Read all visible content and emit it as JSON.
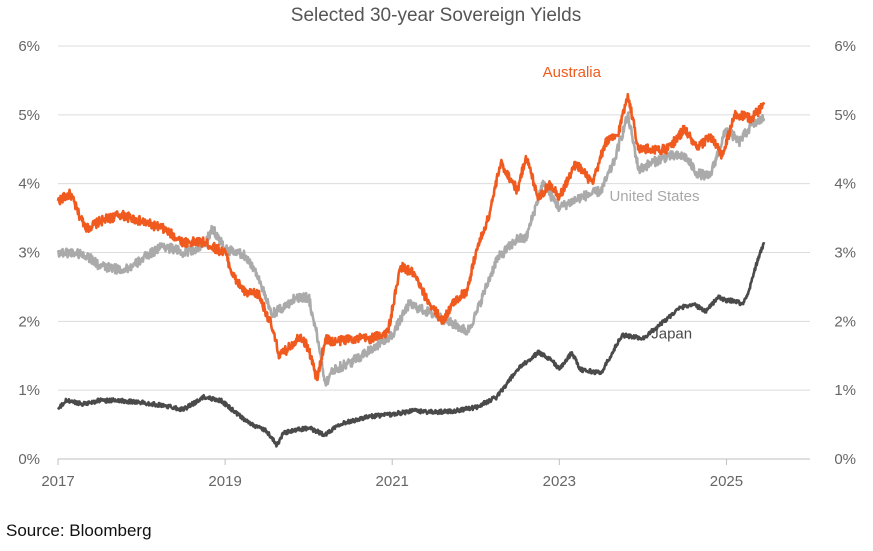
{
  "chart_data": {
    "type": "line",
    "title": "Selected 30-year Sovereign Yields",
    "xlabel": "",
    "ylabel": "",
    "xlim": [
      2017.0,
      2026.0
    ],
    "ylim": [
      0,
      6
    ],
    "y_ticks": [
      0,
      1,
      2,
      3,
      4,
      5,
      6
    ],
    "y_tick_labels": [
      "0%",
      "1%",
      "2%",
      "3%",
      "4%",
      "5%",
      "6%"
    ],
    "x_ticks": [
      2017,
      2019,
      2021,
      2023,
      2025
    ],
    "x_tick_labels": [
      "2017",
      "2019",
      "2021",
      "2023",
      "2025"
    ],
    "grid": true,
    "legend": "none (series labelled directly on chart)",
    "series": [
      {
        "name": "Australia",
        "color": "#f05a1e",
        "x": [
          2017.0,
          2017.15,
          2017.25,
          2017.35,
          2017.5,
          2017.75,
          2018.0,
          2018.25,
          2018.5,
          2018.75,
          2018.9,
          2019.0,
          2019.1,
          2019.25,
          2019.4,
          2019.55,
          2019.65,
          2019.75,
          2019.9,
          2020.0,
          2020.1,
          2020.2,
          2020.3,
          2020.5,
          2020.75,
          2020.95,
          2021.1,
          2021.25,
          2021.4,
          2021.6,
          2021.75,
          2021.9,
          2022.0,
          2022.15,
          2022.3,
          2022.5,
          2022.6,
          2022.75,
          2022.9,
          2023.0,
          2023.2,
          2023.4,
          2023.55,
          2023.7,
          2023.82,
          2023.95,
          2024.1,
          2024.3,
          2024.5,
          2024.65,
          2024.8,
          2024.95,
          2025.1,
          2025.3,
          2025.45
        ],
        "values": [
          3.75,
          3.85,
          3.55,
          3.35,
          3.45,
          3.55,
          3.45,
          3.35,
          3.15,
          3.15,
          3.05,
          3.0,
          2.65,
          2.4,
          2.4,
          1.95,
          1.5,
          1.6,
          1.8,
          1.6,
          1.15,
          1.75,
          1.7,
          1.75,
          1.75,
          1.85,
          2.8,
          2.7,
          2.35,
          2.0,
          2.3,
          2.45,
          3.0,
          3.5,
          4.3,
          3.9,
          4.4,
          3.8,
          4.0,
          3.8,
          4.3,
          4.0,
          4.6,
          4.7,
          5.3,
          4.5,
          4.5,
          4.5,
          4.8,
          4.5,
          4.7,
          4.4,
          5.0,
          4.95,
          5.15
        ]
      },
      {
        "name": "United States",
        "color": "#aaaaaa",
        "x": [
          2017.0,
          2017.2,
          2017.35,
          2017.5,
          2017.75,
          2017.9,
          2018.0,
          2018.25,
          2018.5,
          2018.75,
          2018.85,
          2019.0,
          2019.25,
          2019.4,
          2019.55,
          2019.7,
          2019.85,
          2020.0,
          2020.1,
          2020.2,
          2020.3,
          2020.5,
          2020.75,
          2021.0,
          2021.2,
          2021.5,
          2021.75,
          2021.9,
          2022.0,
          2022.25,
          2022.5,
          2022.6,
          2022.8,
          2023.0,
          2023.25,
          2023.5,
          2023.65,
          2023.82,
          2023.95,
          2024.1,
          2024.3,
          2024.5,
          2024.65,
          2024.8,
          2025.0,
          2025.15,
          2025.3,
          2025.45
        ],
        "values": [
          3.0,
          3.0,
          2.95,
          2.8,
          2.75,
          2.8,
          2.9,
          3.1,
          3.0,
          3.1,
          3.35,
          3.05,
          2.95,
          2.65,
          2.1,
          2.2,
          2.35,
          2.35,
          1.8,
          1.1,
          1.3,
          1.4,
          1.6,
          1.8,
          2.25,
          2.1,
          1.95,
          1.85,
          2.1,
          2.9,
          3.2,
          3.2,
          4.0,
          3.65,
          3.8,
          3.9,
          4.3,
          5.0,
          4.2,
          4.3,
          4.4,
          4.4,
          4.15,
          4.1,
          4.8,
          4.6,
          4.85,
          4.95
        ]
      },
      {
        "name": "Japan",
        "color": "#4a4a4a",
        "x": [
          2017.0,
          2017.1,
          2017.3,
          2017.5,
          2017.75,
          2018.0,
          2018.25,
          2018.5,
          2018.75,
          2018.95,
          2019.1,
          2019.25,
          2019.5,
          2019.62,
          2019.7,
          2019.85,
          2020.0,
          2020.2,
          2020.35,
          2020.5,
          2020.75,
          2021.0,
          2021.25,
          2021.5,
          2021.75,
          2022.0,
          2022.25,
          2022.5,
          2022.75,
          2022.9,
          2023.0,
          2023.15,
          2023.25,
          2023.5,
          2023.75,
          2024.0,
          2024.25,
          2024.45,
          2024.6,
          2024.75,
          2024.9,
          2025.0,
          2025.1,
          2025.2,
          2025.27,
          2025.35,
          2025.45
        ],
        "values": [
          0.72,
          0.85,
          0.8,
          0.85,
          0.85,
          0.82,
          0.78,
          0.72,
          0.9,
          0.85,
          0.7,
          0.55,
          0.4,
          0.2,
          0.38,
          0.42,
          0.45,
          0.35,
          0.5,
          0.55,
          0.62,
          0.65,
          0.7,
          0.68,
          0.7,
          0.75,
          0.9,
          1.3,
          1.55,
          1.45,
          1.3,
          1.55,
          1.3,
          1.25,
          1.8,
          1.75,
          2.0,
          2.2,
          2.25,
          2.15,
          2.35,
          2.3,
          2.3,
          2.25,
          2.45,
          2.8,
          3.15
        ]
      }
    ]
  },
  "source_text": "Source: Bloomberg"
}
